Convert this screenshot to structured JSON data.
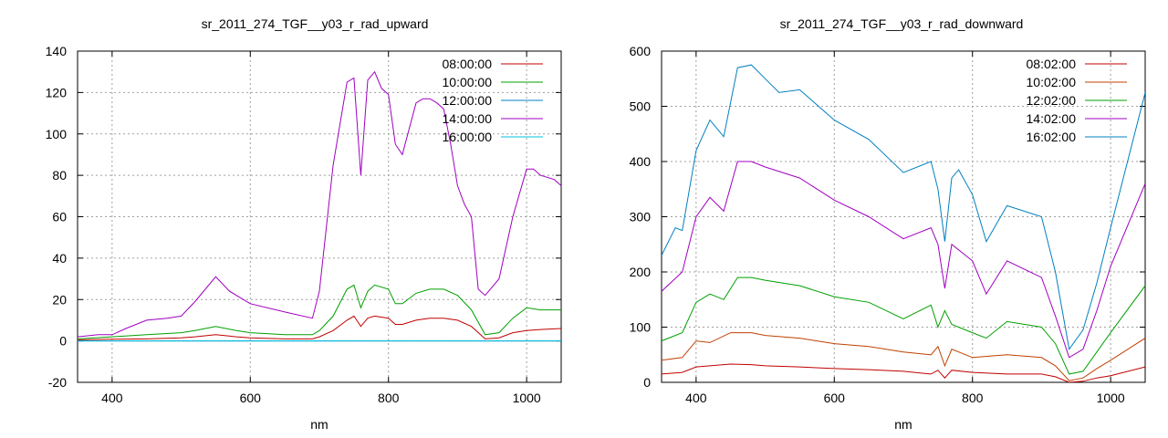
{
  "chart_data": [
    {
      "type": "line",
      "title": "sr_2011_274_TGF__y03_r_rad_upward",
      "xlabel": "nm",
      "ylabel": "",
      "xlim": [
        350,
        1050
      ],
      "ylim": [
        -20,
        140
      ],
      "xticks": [
        400,
        600,
        800,
        1000
      ],
      "yticks": [
        -20,
        0,
        20,
        40,
        60,
        80,
        100,
        120,
        140
      ],
      "grid": true,
      "legend_position": "top-right",
      "series": [
        {
          "name": "08:00:00",
          "color": "#c00000",
          "x": [
            350,
            400,
            450,
            500,
            520,
            550,
            580,
            600,
            650,
            690,
            700,
            720,
            740,
            750,
            760,
            770,
            780,
            800,
            810,
            820,
            840,
            860,
            880,
            900,
            920,
            940,
            960,
            980,
            1000,
            1020,
            1050
          ],
          "y": [
            0.5,
            0.8,
            1,
            1.5,
            2,
            3,
            2,
            1.5,
            1,
            1,
            2,
            5,
            10,
            12,
            7,
            11,
            12,
            11,
            8,
            8,
            10,
            11,
            11,
            10,
            7,
            1,
            1.5,
            4,
            5,
            5.5,
            6
          ]
        },
        {
          "name": "10:00:00",
          "color": "#00a000",
          "x": [
            350,
            400,
            450,
            500,
            520,
            550,
            580,
            600,
            650,
            690,
            700,
            720,
            740,
            750,
            760,
            770,
            780,
            800,
            810,
            820,
            840,
            860,
            880,
            900,
            920,
            940,
            960,
            980,
            1000,
            1020,
            1050
          ],
          "y": [
            1,
            2,
            3,
            4,
            5,
            7,
            5,
            4,
            3,
            3,
            5,
            12,
            25,
            27,
            16,
            24,
            27,
            25,
            18,
            18,
            23,
            25,
            25,
            22,
            15,
            3,
            4,
            11,
            16,
            15,
            15
          ]
        },
        {
          "name": "12:00:00",
          "color": "#0080c0",
          "x": [
            350,
            450,
            550,
            650,
            750,
            850,
            950,
            1050
          ],
          "y": [
            0,
            0,
            0,
            0,
            0,
            0,
            0,
            0
          ]
        },
        {
          "name": "14:00:00",
          "color": "#a000c0",
          "x": [
            350,
            380,
            400,
            420,
            450,
            480,
            500,
            520,
            550,
            570,
            600,
            650,
            690,
            700,
            720,
            740,
            750,
            760,
            770,
            780,
            790,
            800,
            810,
            820,
            840,
            850,
            860,
            870,
            880,
            890,
            900,
            910,
            920,
            930,
            940,
            960,
            980,
            1000,
            1010,
            1020,
            1040,
            1050
          ],
          "y": [
            2,
            3,
            3,
            6,
            10,
            11,
            12,
            19,
            31,
            24,
            18,
            14,
            11,
            24,
            85,
            125,
            127,
            80,
            126,
            130,
            122,
            119,
            95,
            90,
            115,
            117,
            117,
            115,
            112,
            95,
            75,
            66,
            60,
            25,
            22,
            30,
            60,
            83,
            83,
            80,
            78,
            75
          ]
        },
        {
          "name": "16:00:00",
          "color": "#00c0e0",
          "x": [
            350,
            450,
            550,
            650,
            750,
            850,
            950,
            1050
          ],
          "y": [
            0,
            0,
            0,
            0,
            0,
            0,
            0,
            0
          ]
        }
      ]
    },
    {
      "type": "line",
      "title": "sr_2011_274_TGF__y03_r_rad_downward",
      "xlabel": "nm",
      "ylabel": "",
      "xlim": [
        350,
        1050
      ],
      "ylim": [
        0,
        600
      ],
      "xticks": [
        400,
        600,
        800,
        1000
      ],
      "yticks": [
        0,
        100,
        200,
        300,
        400,
        500,
        600
      ],
      "grid": true,
      "legend_position": "top-right",
      "series": [
        {
          "name": "08:02:00",
          "color": "#c00000",
          "x": [
            350,
            380,
            400,
            420,
            450,
            480,
            500,
            550,
            600,
            650,
            700,
            740,
            750,
            760,
            770,
            800,
            850,
            900,
            920,
            940,
            960,
            980,
            1000,
            1050
          ],
          "y": [
            15,
            18,
            28,
            30,
            33,
            32,
            30,
            28,
            25,
            23,
            20,
            15,
            22,
            8,
            22,
            18,
            15,
            15,
            10,
            0,
            2,
            8,
            12,
            28
          ]
        },
        {
          "name": "10:02:00",
          "color": "#c04000",
          "x": [
            350,
            380,
            400,
            420,
            450,
            480,
            500,
            550,
            600,
            650,
            700,
            740,
            750,
            760,
            770,
            800,
            850,
            900,
            920,
            940,
            960,
            980,
            1000,
            1050
          ],
          "y": [
            40,
            45,
            75,
            72,
            90,
            90,
            85,
            80,
            70,
            65,
            55,
            50,
            65,
            30,
            60,
            45,
            50,
            45,
            30,
            3,
            8,
            25,
            40,
            80
          ]
        },
        {
          "name": "12:02:00",
          "color": "#00a000",
          "x": [
            350,
            380,
            400,
            420,
            440,
            460,
            480,
            500,
            550,
            600,
            650,
            700,
            740,
            750,
            760,
            770,
            800,
            820,
            850,
            900,
            920,
            940,
            960,
            980,
            1000,
            1050
          ],
          "y": [
            75,
            90,
            145,
            160,
            150,
            190,
            190,
            185,
            175,
            155,
            145,
            115,
            140,
            100,
            130,
            105,
            90,
            80,
            110,
            100,
            70,
            15,
            20,
            55,
            90,
            175
          ]
        },
        {
          "name": "14:02:00",
          "color": "#a000c0",
          "x": [
            350,
            380,
            400,
            420,
            440,
            460,
            480,
            500,
            550,
            600,
            650,
            700,
            740,
            750,
            760,
            770,
            800,
            820,
            850,
            900,
            920,
            940,
            960,
            980,
            1000,
            1050
          ],
          "y": [
            165,
            200,
            300,
            335,
            310,
            400,
            400,
            390,
            370,
            330,
            300,
            260,
            280,
            250,
            170,
            250,
            220,
            160,
            220,
            190,
            120,
            45,
            60,
            130,
            210,
            360
          ]
        },
        {
          "name": "16:02:00",
          "color": "#0080c0",
          "x": [
            350,
            370,
            380,
            400,
            420,
            440,
            460,
            480,
            500,
            520,
            550,
            600,
            650,
            700,
            740,
            750,
            760,
            770,
            780,
            800,
            820,
            850,
            900,
            920,
            940,
            960,
            980,
            1000,
            1050
          ],
          "y": [
            230,
            280,
            275,
            420,
            475,
            445,
            570,
            575,
            550,
            525,
            530,
            475,
            440,
            380,
            400,
            350,
            255,
            370,
            385,
            340,
            255,
            320,
            300,
            200,
            60,
            95,
            180,
            280,
            525
          ]
        }
      ]
    }
  ]
}
